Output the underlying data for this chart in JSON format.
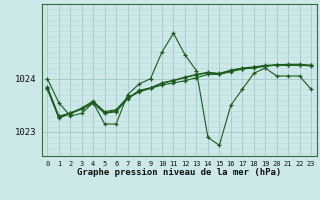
{
  "title": "Graphe pression niveau de la mer (hPa)",
  "bg_color": "#cce8e8",
  "grid_color_major": "#aacccc",
  "grid_color_minor": "#bbdddd",
  "line_color": "#1a5c1a",
  "x_ticks": [
    0,
    1,
    2,
    3,
    4,
    5,
    6,
    7,
    8,
    9,
    10,
    11,
    12,
    13,
    14,
    15,
    16,
    17,
    18,
    19,
    20,
    21,
    22,
    23
  ],
  "ylim": [
    1022.55,
    1025.4
  ],
  "yticks": [
    1023,
    1024
  ],
  "series": [
    [
      1024.0,
      1023.55,
      1023.3,
      1023.35,
      1023.55,
      1023.15,
      1023.15,
      1023.7,
      1023.9,
      1024.0,
      1024.5,
      1024.85,
      1024.45,
      1024.15,
      1022.9,
      1022.75,
      1023.5,
      1023.8,
      1024.1,
      1024.2,
      1024.05,
      1024.05,
      1024.05,
      1023.8
    ],
    [
      1023.85,
      1023.3,
      1023.35,
      1023.45,
      1023.58,
      1023.38,
      1023.42,
      1023.65,
      1023.75,
      1023.82,
      1023.88,
      1023.92,
      1023.96,
      1024.02,
      1024.08,
      1024.08,
      1024.13,
      1024.18,
      1024.2,
      1024.23,
      1024.26,
      1024.27,
      1024.27,
      1024.25
    ],
    [
      1023.82,
      1023.28,
      1023.36,
      1023.44,
      1023.56,
      1023.36,
      1023.4,
      1023.63,
      1023.78,
      1023.83,
      1023.92,
      1023.97,
      1024.03,
      1024.08,
      1024.12,
      1024.1,
      1024.16,
      1024.2,
      1024.22,
      1024.25,
      1024.26,
      1024.26,
      1024.26,
      1024.25
    ],
    [
      1023.8,
      1023.26,
      1023.34,
      1023.43,
      1023.54,
      1023.35,
      1023.38,
      1023.62,
      1023.76,
      1023.82,
      1023.91,
      1023.96,
      1024.02,
      1024.07,
      1024.11,
      1024.09,
      1024.15,
      1024.19,
      1024.21,
      1024.24,
      1024.25,
      1024.25,
      1024.25,
      1024.24
    ]
  ]
}
